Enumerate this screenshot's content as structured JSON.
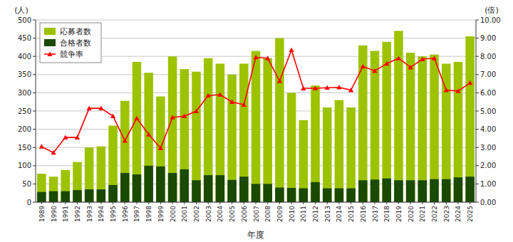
{
  "chart_data": {
    "type": "bar",
    "xlabel": "年度",
    "ylabel": "(人)",
    "y2label": "(倍)",
    "categories": [
      "1989",
      "1990",
      "1991",
      "1992",
      "1993",
      "1994",
      "1995",
      "1996",
      "1997",
      "1998",
      "1999",
      "2000",
      "2001",
      "2002",
      "2003",
      "2004",
      "2005",
      "2006",
      "2007",
      "2008",
      "2009",
      "2010",
      "2011",
      "2012",
      "2013",
      "2014",
      "2015",
      "2016",
      "2017",
      "2018",
      "2019",
      "2020",
      "2021",
      "2022",
      "2023",
      "2024",
      "2025"
    ],
    "series": [
      {
        "name": "応募者数",
        "type": "bar",
        "color": "#9dc300",
        "values": [
          78,
          70,
          88,
          110,
          150,
          153,
          210,
          278,
          385,
          355,
          290,
          400,
          365,
          358,
          395,
          380,
          350,
          380,
          415,
          395,
          450,
          300,
          225,
          320,
          260,
          280,
          260,
          430,
          415,
          440,
          470,
          410,
          400,
          405,
          380,
          385,
          455
        ]
      },
      {
        "name": "合格者数",
        "type": "bar",
        "color": "#1a4a00",
        "values": [
          28,
          30,
          30,
          33,
          35,
          35,
          47,
          80,
          76,
          100,
          98,
          80,
          90,
          60,
          74,
          74,
          61,
          70,
          50,
          50,
          40,
          39,
          38,
          55,
          38,
          38,
          38,
          60,
          62,
          65,
          60,
          60,
          60,
          63,
          63,
          68,
          70
        ]
      },
      {
        "name": "競争率",
        "type": "line",
        "axis": "y2",
        "color": "#ff0000",
        "marker": "triangle",
        "values": [
          3.05,
          2.72,
          3.55,
          3.55,
          5.15,
          5.15,
          4.72,
          3.37,
          4.6,
          3.72,
          2.96,
          4.65,
          4.72,
          5.0,
          5.85,
          5.9,
          5.5,
          5.35,
          7.95,
          7.9,
          6.65,
          8.35,
          6.25,
          6.25,
          6.28,
          6.3,
          6.15,
          7.45,
          7.2,
          7.6,
          7.9,
          7.4,
          7.85,
          7.9,
          6.15,
          6.1,
          6.55
        ]
      }
    ],
    "stacked": false,
    "ylim": [
      0,
      500
    ],
    "yticks": [
      0,
      50,
      100,
      150,
      200,
      250,
      300,
      350,
      400,
      450,
      500
    ],
    "y2lim": [
      0,
      10
    ],
    "y2ticks": [
      {
        "value": 0,
        "label": "0.00"
      },
      {
        "value": 1,
        "label": "1.00"
      },
      {
        "value": 2,
        "label": "2.00"
      },
      {
        "value": 3,
        "label": "3.00"
      },
      {
        "value": 4,
        "label": "4.00"
      },
      {
        "value": 5,
        "label": "5.00"
      },
      {
        "value": 6,
        "label": "6.00"
      },
      {
        "value": 7,
        "label": "7.00"
      },
      {
        "value": 8,
        "label": "8.00"
      },
      {
        "value": 9,
        "label": "9.00"
      },
      {
        "value": 10,
        "label": "10.00"
      }
    ],
    "grid": true,
    "legend": "upper left"
  }
}
